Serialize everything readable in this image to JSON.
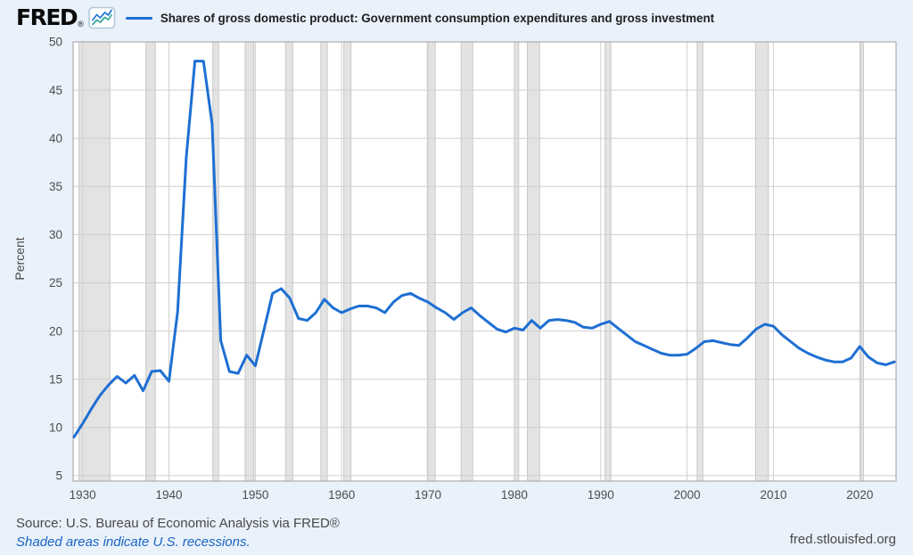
{
  "header": {
    "logo_text": "FRED",
    "registered_mark": "®",
    "legend_label": "Shares of gross domestic product: Government consumption expenditures and gross investment"
  },
  "footer": {
    "source_text": "Source: U.S. Bureau of Economic Analysis via FRED®",
    "recessions_note": "Shaded areas indicate U.S. recessions.",
    "site_url": "fred.stlouisfed.org"
  },
  "colors": {
    "background": "#e9f1fa",
    "plot_background": "#ffffff",
    "line": "#1e6fd3",
    "gridline": "#cfcfcf",
    "plot_border": "#aeaeae",
    "recession_fill": "#e3e3e3",
    "recession_edge": "#c8c8c8",
    "tick_text": "#4d4d4d",
    "axis_label_text": "#4a4a4a",
    "title_text": "#1f1f1f",
    "link": "#1a64c4",
    "logo_icon_blue": "#2d7dd8",
    "logo_icon_teal": "#3aa79b"
  },
  "chart_data": {
    "type": "line",
    "title": "Shares of gross domestic product: Government consumption expenditures and gross investment",
    "xlabel": "",
    "ylabel": "Percent",
    "grid": true,
    "legend_position": "top-left",
    "x_tick_labels": [
      1930,
      1940,
      1950,
      1960,
      1970,
      1980,
      1990,
      2000,
      2010,
      2020
    ],
    "y_tick_labels": [
      5,
      10,
      15,
      20,
      25,
      30,
      35,
      40,
      45,
      50
    ],
    "xlim": [
      1928.9,
      2024.2
    ],
    "ylim": [
      4.4,
      50
    ],
    "recessions": [
      [
        1929.58,
        1933.17
      ],
      [
        1937.33,
        1938.42
      ],
      [
        1945.08,
        1945.75
      ],
      [
        1948.83,
        1949.83
      ],
      [
        1953.5,
        1954.33
      ],
      [
        1957.58,
        1958.33
      ],
      [
        1960.25,
        1961.08
      ],
      [
        1969.92,
        1970.83
      ],
      [
        1973.83,
        1975.17
      ],
      [
        1980.0,
        1980.5
      ],
      [
        1981.5,
        1982.92
      ],
      [
        1990.5,
        1991.17
      ],
      [
        2001.17,
        2001.83
      ],
      [
        2007.92,
        2009.42
      ],
      [
        2020.08,
        2020.42
      ]
    ],
    "series": [
      {
        "name": "Shares of gross domestic product: Government consumption expenditures and gross investment",
        "units": "Percent",
        "x": [
          1929,
          1930,
          1931,
          1932,
          1933,
          1934,
          1935,
          1936,
          1937,
          1938,
          1939,
          1940,
          1941,
          1942,
          1943,
          1944,
          1945,
          1946,
          1947,
          1948,
          1949,
          1950,
          1951,
          1952,
          1953,
          1954,
          1955,
          1956,
          1957,
          1958,
          1959,
          1960,
          1961,
          1962,
          1963,
          1964,
          1965,
          1966,
          1967,
          1968,
          1969,
          1970,
          1971,
          1972,
          1973,
          1974,
          1975,
          1976,
          1977,
          1978,
          1979,
          1980,
          1981,
          1982,
          1983,
          1984,
          1985,
          1986,
          1987,
          1988,
          1989,
          1990,
          1991,
          1992,
          1993,
          1994,
          1995,
          1996,
          1997,
          1998,
          1999,
          2000,
          2001,
          2002,
          2003,
          2004,
          2005,
          2006,
          2007,
          2008,
          2009,
          2010,
          2011,
          2012,
          2013,
          2014,
          2015,
          2016,
          2017,
          2018,
          2019,
          2020,
          2021,
          2022,
          2023,
          2024
        ],
        "values": [
          9.0,
          10.4,
          11.9,
          13.3,
          14.4,
          15.3,
          14.6,
          15.4,
          13.8,
          15.8,
          15.9,
          14.8,
          22.0,
          38.0,
          48.0,
          48.0,
          41.5,
          19.0,
          15.8,
          15.6,
          17.5,
          16.4,
          20.1,
          23.9,
          24.4,
          23.4,
          21.3,
          21.1,
          21.9,
          23.3,
          22.4,
          21.9,
          22.3,
          22.6,
          22.6,
          22.4,
          21.9,
          23.0,
          23.7,
          23.9,
          23.4,
          23.0,
          22.4,
          21.9,
          21.2,
          21.9,
          22.4,
          21.6,
          20.9,
          20.2,
          19.9,
          20.3,
          20.1,
          21.1,
          20.3,
          21.1,
          21.2,
          21.1,
          20.9,
          20.4,
          20.3,
          20.7,
          21.0,
          20.3,
          19.6,
          18.9,
          18.5,
          18.1,
          17.7,
          17.5,
          17.5,
          17.6,
          18.2,
          18.9,
          19.0,
          18.8,
          18.6,
          18.5,
          19.3,
          20.2,
          20.7,
          20.5,
          19.6,
          18.9,
          18.2,
          17.7,
          17.3,
          17.0,
          16.8,
          16.8,
          17.2,
          18.4,
          17.3,
          16.7,
          16.5,
          16.8
        ]
      }
    ]
  }
}
